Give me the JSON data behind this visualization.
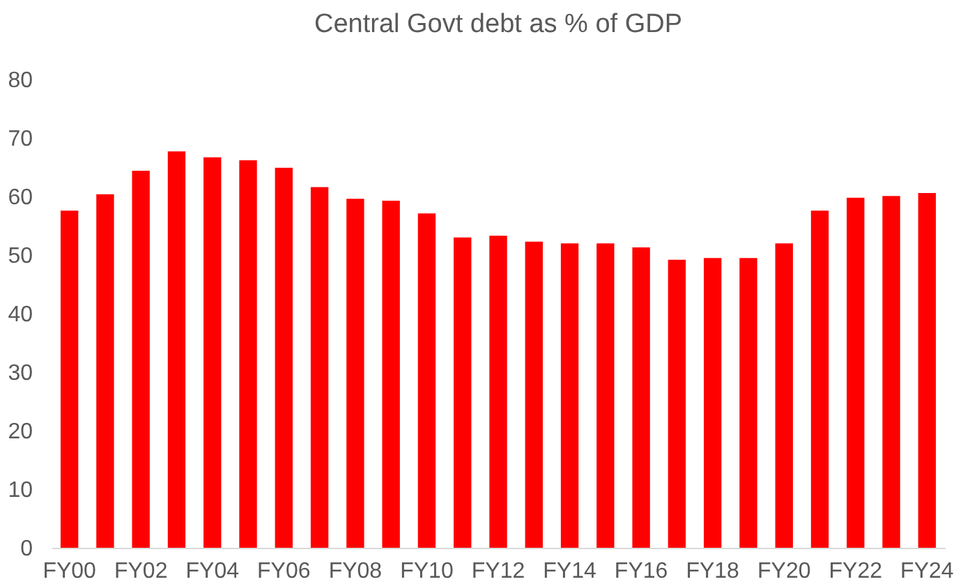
{
  "chart_data": {
    "type": "bar",
    "title": "Central Govt debt as % of GDP",
    "categories": [
      "FY00",
      null,
      "FY02",
      null,
      "FY04",
      null,
      "FY06",
      null,
      "FY08",
      null,
      "FY10",
      null,
      "FY12",
      null,
      "FY14",
      null,
      "FY16",
      null,
      "FY18",
      null,
      "FY20",
      null,
      "FY22",
      null,
      "FY24"
    ],
    "values": [
      57.6,
      60.4,
      64.4,
      67.7,
      66.7,
      66.2,
      64.9,
      61.6,
      59.6,
      59.3,
      57.1,
      53.0,
      53.3,
      52.3,
      52.0,
      52.0,
      51.3,
      49.2,
      49.5,
      49.5,
      52.0,
      57.6,
      59.8,
      60.1,
      60.6
    ],
    "color": "#ff0000",
    "ylim": [
      0,
      80
    ],
    "yticks": [
      0,
      10,
      20,
      30,
      40,
      50,
      60,
      70,
      80
    ],
    "grid": false
  }
}
